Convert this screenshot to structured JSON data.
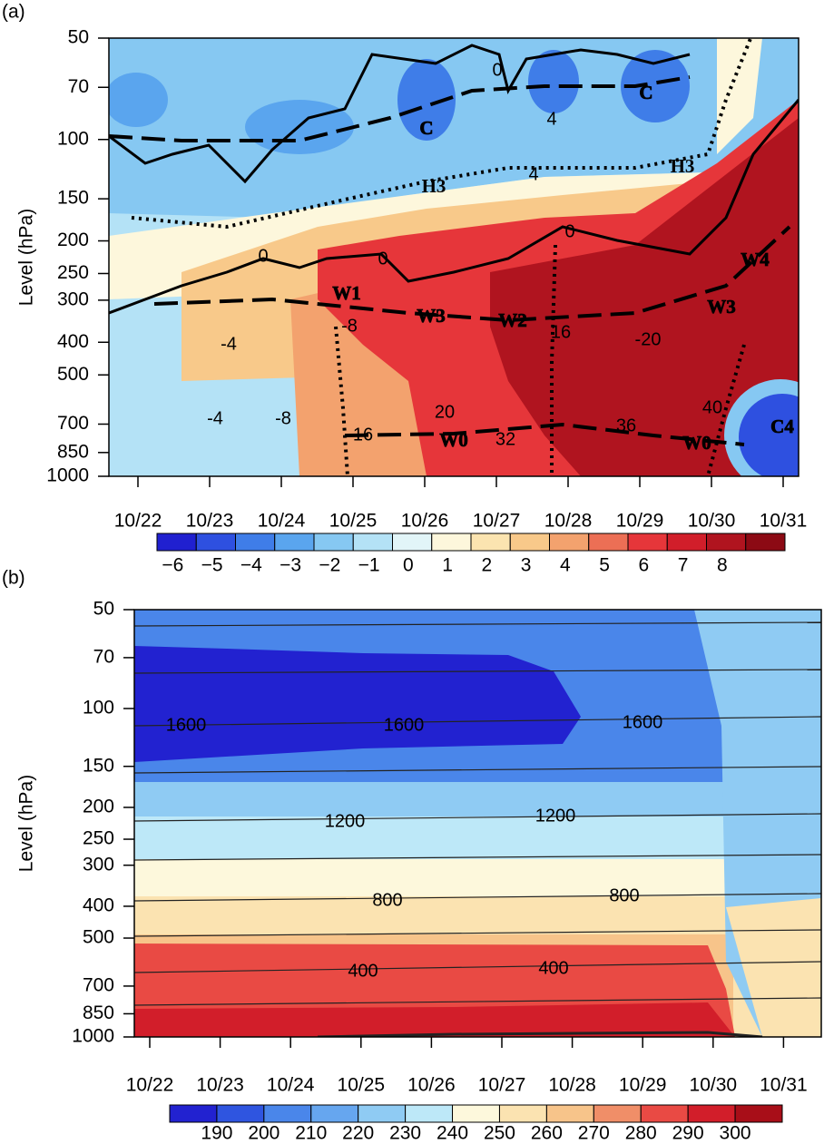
{
  "chart_data": [
    {
      "type": "contour",
      "panel_label": "(a)",
      "ylabel": "Level (hPa)",
      "ylog": true,
      "ylim": [
        50,
        1000
      ],
      "yticks": [
        50,
        70,
        100,
        150,
        200,
        250,
        300,
        400,
        500,
        700,
        850,
        1000
      ],
      "x": [
        "10/22",
        "10/23",
        "10/24",
        "10/25",
        "10/26",
        "10/27",
        "10/28",
        "10/29",
        "10/30",
        "10/31"
      ],
      "annotations": [
        "C",
        "C",
        "H3",
        "H3",
        "W1",
        "W3",
        "W2",
        "W3",
        "W4",
        "W0",
        "W0",
        "C4"
      ],
      "contour_labels": [
        0,
        4,
        0,
        0,
        0,
        4,
        -4,
        -8,
        -4,
        -8,
        16,
        20,
        32,
        36,
        40,
        -20,
        16
      ],
      "colorbar": {
        "ticks": [
          {
            "value": -6,
            "label": "−6"
          },
          {
            "value": -5,
            "label": "−5"
          },
          {
            "value": -4,
            "label": "−4"
          },
          {
            "value": -3,
            "label": "−3"
          },
          {
            "value": -2,
            "label": "−2"
          },
          {
            "value": -1,
            "label": "−1"
          },
          0,
          1,
          2,
          3,
          4,
          5,
          6,
          7,
          8
        ],
        "colors": [
          "#2020d0",
          "#2e50e0",
          "#3f7de8",
          "#5aa5ee",
          "#86c8f2",
          "#b4e2f6",
          "#e2f5f8",
          "#fdf7dc",
          "#fbe4b0",
          "#f8c98a",
          "#f3a26e",
          "#ec6f55",
          "#e6363a",
          "#d11e2a",
          "#b0141f",
          "#8c0a14"
        ]
      }
    },
    {
      "type": "contour",
      "panel_label": "(b)",
      "ylabel": "Level (hPa)",
      "ylog": true,
      "ylim": [
        50,
        1000
      ],
      "yticks": [
        50,
        70,
        100,
        150,
        200,
        250,
        300,
        400,
        500,
        700,
        850,
        1000
      ],
      "x": [
        "10/22",
        "10/23",
        "10/24",
        "10/25",
        "10/26",
        "10/27",
        "10/28",
        "10/29",
        "10/30",
        "10/31"
      ],
      "contour_labels": [
        1600,
        1600,
        1600,
        1200,
        1200,
        800,
        800,
        400,
        400
      ],
      "colorbar": {
        "ticks": [
          190,
          200,
          210,
          220,
          230,
          240,
          250,
          260,
          270,
          280,
          290,
          300
        ],
        "colors": [
          "#2222d0",
          "#2f55e0",
          "#4a86ea",
          "#66a6ef",
          "#8fcbf3",
          "#bde8f8",
          "#fdf8dc",
          "#fbe3b1",
          "#f7c48a",
          "#f08e68",
          "#e94a44",
          "#d21e2a",
          "#a80e18"
        ]
      }
    }
  ]
}
